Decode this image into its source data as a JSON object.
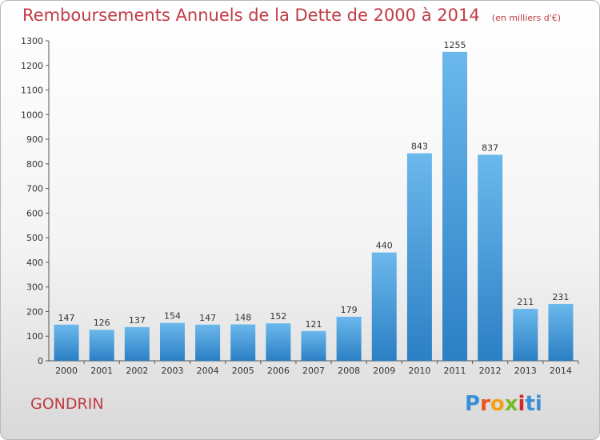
{
  "title": "Remboursements Annuels de la Dette de 2000 à 2014",
  "unit_label": "(en milliers d'€)",
  "commune": "GONDRIN",
  "logo": {
    "text": "Proxiti",
    "letters": [
      "P",
      "r",
      "o",
      "x",
      "i",
      "ti"
    ]
  },
  "colors": {
    "title": "#c03c45",
    "bar_light": "#6bb8ec",
    "bar_dark": "#2b7fc4"
  },
  "chart_data": {
    "type": "bar",
    "categories": [
      "2000",
      "2001",
      "2002",
      "2003",
      "2004",
      "2005",
      "2006",
      "2007",
      "2008",
      "2009",
      "2010",
      "2011",
      "2012",
      "2013",
      "2014"
    ],
    "values": [
      147,
      126,
      137,
      154,
      147,
      148,
      152,
      121,
      179,
      440,
      843,
      1255,
      837,
      211,
      231
    ],
    "ylim": [
      0,
      1300
    ],
    "yticks": [
      0,
      100,
      200,
      300,
      400,
      500,
      600,
      700,
      800,
      900,
      1000,
      1100,
      1200,
      1300
    ],
    "grid": false,
    "legend": "none"
  }
}
